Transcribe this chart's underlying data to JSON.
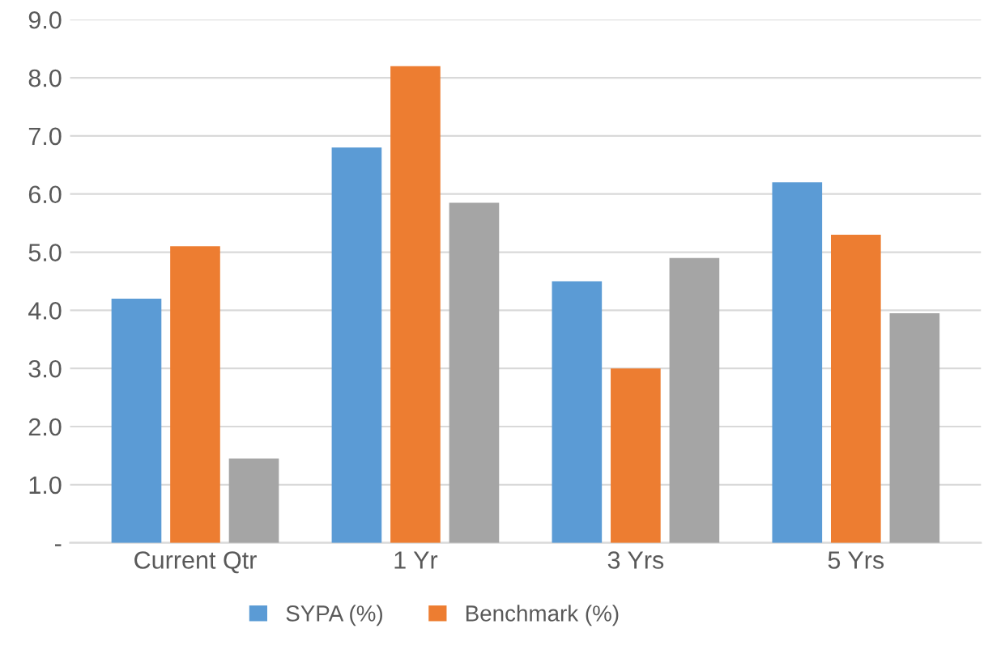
{
  "chart_data": {
    "type": "bar",
    "categories": [
      "Current Qtr",
      "1 Yr",
      "3 Yrs",
      "5 Yrs"
    ],
    "series": [
      {
        "name": "SYPA (%)",
        "color": "#5b9bd5",
        "values": [
          4.2,
          6.8,
          4.5,
          6.2
        ]
      },
      {
        "name": "Benchmark (%)",
        "color": "#ed7d31",
        "values": [
          5.1,
          8.2,
          3.0,
          5.3
        ]
      },
      {
        "color": "#a5a5a5",
        "values": [
          1.45,
          5.85,
          4.9,
          3.95
        ]
      }
    ],
    "ylim": [
      0,
      9
    ],
    "yticks": [
      {
        "value": 0,
        "label": "-"
      },
      {
        "value": 1,
        "label": "1.0"
      },
      {
        "value": 2,
        "label": "2.0"
      },
      {
        "value": 3,
        "label": "3.0"
      },
      {
        "value": 4,
        "label": "4.0"
      },
      {
        "value": 5,
        "label": "5.0"
      },
      {
        "value": 6,
        "label": "6.0"
      },
      {
        "value": 7,
        "label": "7.0"
      },
      {
        "value": 8,
        "label": "8.0"
      },
      {
        "value": 9,
        "label": "9.0"
      }
    ],
    "grid": "y",
    "legend": "bottom"
  }
}
